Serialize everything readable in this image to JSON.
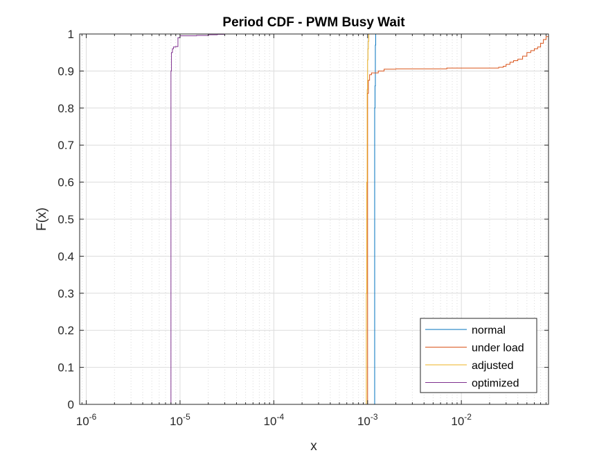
{
  "chart_data": {
    "type": "line",
    "title": "Period CDF - PWM Busy Wait",
    "xlabel": "x",
    "ylabel": "F(x)",
    "xscale": "log",
    "xlim": [
      8.5e-07,
      0.085
    ],
    "ylim": [
      0,
      1
    ],
    "grid": true,
    "minor_grid_x": true,
    "legend_position": "bottom-right",
    "x_ticks": [
      {
        "base": "10",
        "exp": "-6"
      },
      {
        "base": "10",
        "exp": "-5"
      },
      {
        "base": "10",
        "exp": "-4"
      },
      {
        "base": "10",
        "exp": "-3"
      },
      {
        "base": "10",
        "exp": "-2"
      }
    ],
    "x_tick_values": [
      1e-06,
      1e-05,
      0.0001,
      0.001,
      0.01
    ],
    "y_ticks": [
      "0",
      "0.1",
      "0.2",
      "0.3",
      "0.4",
      "0.5",
      "0.6",
      "0.7",
      "0.8",
      "0.9",
      "1"
    ],
    "y_tick_values": [
      0,
      0.1,
      0.2,
      0.3,
      0.4,
      0.5,
      0.6,
      0.7,
      0.8,
      0.9,
      1
    ],
    "series": [
      {
        "name": "normal",
        "color": "#0072BD",
        "x": [
          0.00119,
          0.00119,
          0.0012,
          0.0012,
          0.00121,
          0.00121,
          0.00122
        ],
        "y": [
          0,
          0.8,
          0.85,
          0.86,
          0.9,
          0.97,
          1.0
        ]
      },
      {
        "name": "under load",
        "color": "#D95319",
        "x": [
          0.001,
          0.001,
          0.00102,
          0.00105,
          0.0011,
          0.0013,
          0.0015,
          0.002,
          0.003,
          0.005,
          0.007,
          0.01,
          0.02,
          0.025,
          0.028,
          0.03,
          0.033,
          0.036,
          0.04,
          0.045,
          0.05,
          0.055,
          0.06,
          0.065,
          0.07,
          0.075,
          0.08,
          0.085
        ],
        "y": [
          0,
          0.84,
          0.875,
          0.89,
          0.895,
          0.9,
          0.905,
          0.906,
          0.906,
          0.906,
          0.908,
          0.908,
          0.908,
          0.91,
          0.913,
          0.918,
          0.924,
          0.928,
          0.932,
          0.94,
          0.95,
          0.955,
          0.96,
          0.965,
          0.975,
          0.985,
          0.993,
          1.0
        ]
      },
      {
        "name": "adjusted",
        "color": "#EDB120",
        "x": [
          0.00097,
          0.00097,
          0.00098,
          0.00099,
          0.001,
          0.00101,
          0.00102,
          0.00103
        ],
        "y": [
          0,
          0.3,
          0.6,
          0.85,
          0.93,
          0.96,
          0.98,
          1.0
        ]
      },
      {
        "name": "optimized",
        "color": "#7E2F8E",
        "x": [
          8e-06,
          8e-06,
          8.1e-06,
          8.3e-06,
          8.5e-06,
          9e-06,
          9.5e-06,
          1e-05,
          1.5e-05,
          2e-05,
          2.5e-05,
          3e-05
        ],
        "y": [
          0,
          0.9,
          0.95,
          0.96,
          0.965,
          0.966,
          0.99,
          0.995,
          0.996,
          0.998,
          0.999,
          1.0
        ]
      }
    ]
  }
}
